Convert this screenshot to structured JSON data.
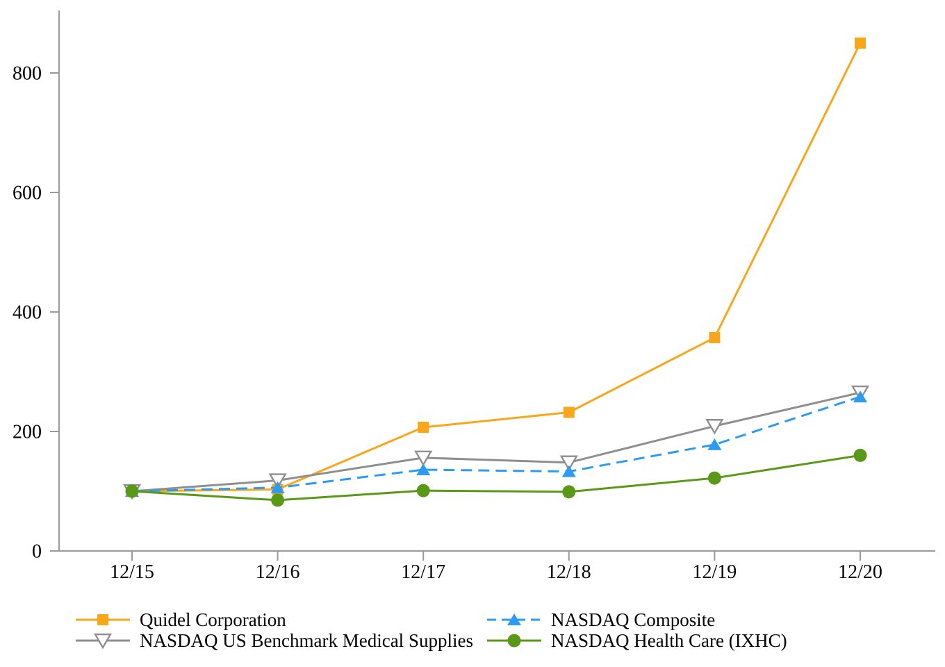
{
  "chart_data": {
    "type": "line",
    "title": "",
    "xlabel": "",
    "ylabel": "",
    "categories": [
      "12/15",
      "12/16",
      "12/17",
      "12/18",
      "12/19",
      "12/20"
    ],
    "yticks": [
      0,
      200,
      400,
      600,
      800
    ],
    "ylim": [
      0,
      905
    ],
    "grid": false,
    "legend_position": "bottom",
    "axis_color": "#9A9A9A",
    "label_color": "#000000",
    "background_color": "#FFFFFF",
    "series": [
      {
        "name": "Quidel Corporation",
        "color": "#F9A61B",
        "marker": "square-filled",
        "line": "solid",
        "z": 1,
        "values": [
          100,
          103,
          207,
          232,
          357,
          850
        ]
      },
      {
        "name": "NASDAQ Composite",
        "color": "#2E9BF2",
        "marker": "triangle-up-filled",
        "line": "dashed",
        "z": 3,
        "values": [
          100,
          106,
          136,
          133,
          178,
          258
        ]
      },
      {
        "name": "NASDAQ US Benchmark Medical Supplies",
        "color": "#8F8F8F",
        "marker": "triangle-down-open",
        "line": "solid",
        "z": 2,
        "values": [
          100,
          118,
          156,
          148,
          209,
          265
        ]
      },
      {
        "name": "NASDAQ Health Care (IXHC)",
        "color": "#5A9818",
        "marker": "circle-filled",
        "line": "solid",
        "z": 4,
        "values": [
          100,
          85,
          101,
          99,
          122,
          160
        ]
      }
    ]
  }
}
